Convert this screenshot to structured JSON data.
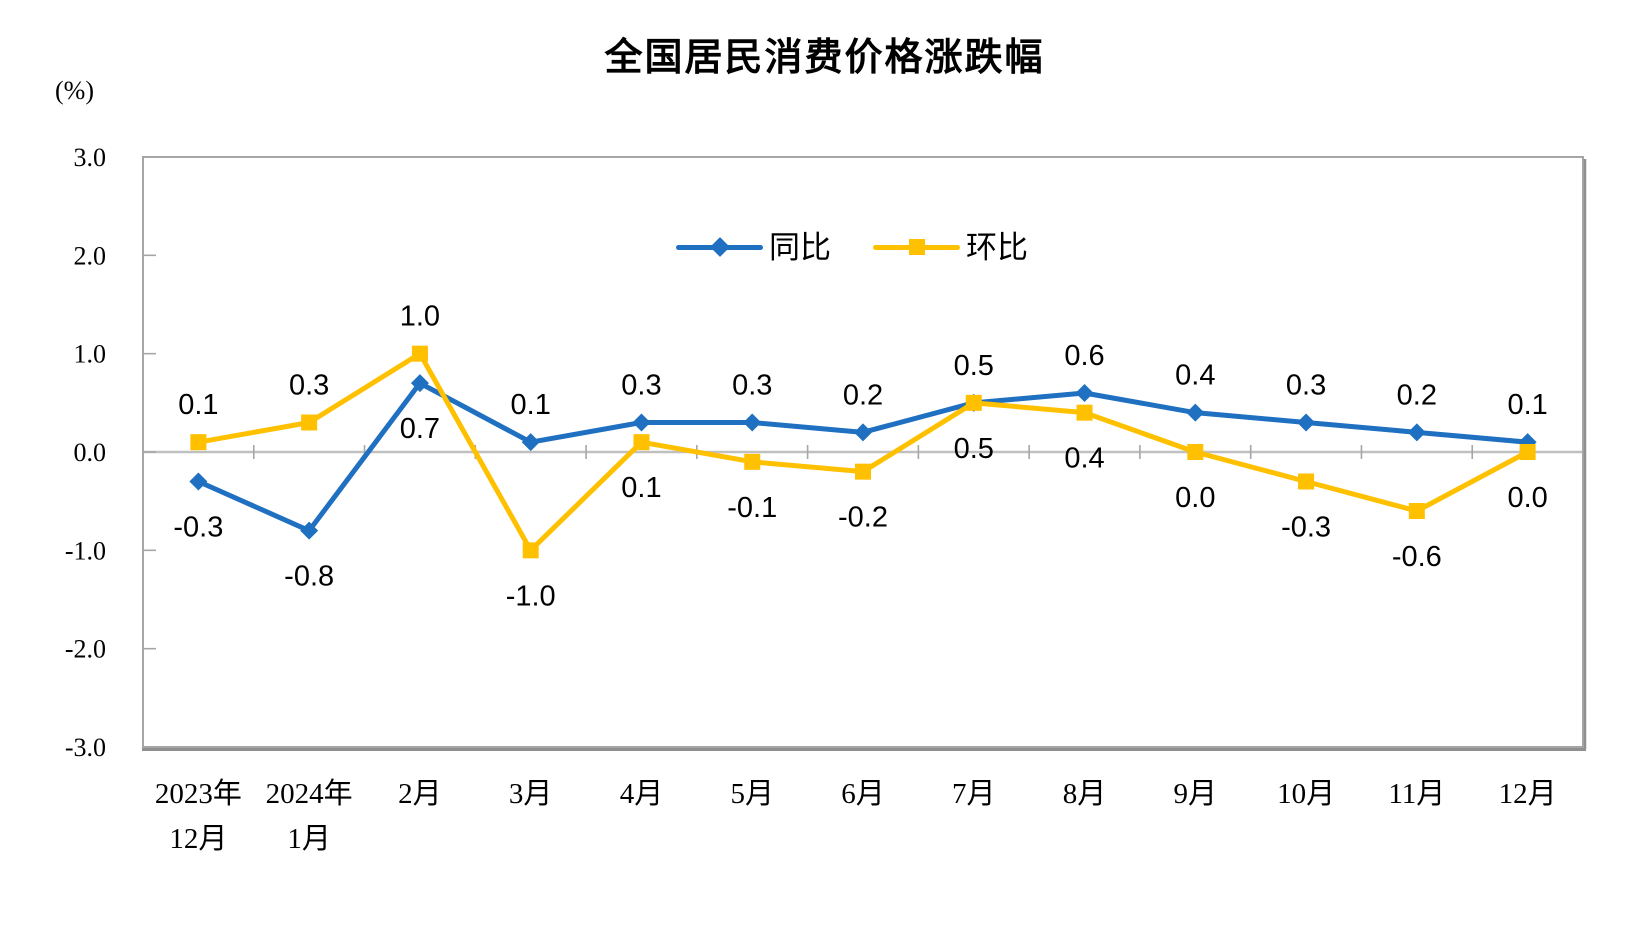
{
  "chart_data": {
    "type": "line",
    "title": "全国居民消费价格涨跌幅",
    "unit_label": "(%)",
    "categories": [
      [
        "2023年",
        "12月"
      ],
      [
        "2024年",
        "1月"
      ],
      [
        "2月"
      ],
      [
        "3月"
      ],
      [
        "4月"
      ],
      [
        "5月"
      ],
      [
        "6月"
      ],
      [
        "7月"
      ],
      [
        "8月"
      ],
      [
        "9月"
      ],
      [
        "10月"
      ],
      [
        "11月"
      ],
      [
        "12月"
      ]
    ],
    "series": [
      {
        "id": "yoy",
        "name": "同比",
        "color": "#1F70C1",
        "marker": "diamond",
        "values": [
          -0.3,
          -0.8,
          0.7,
          0.1,
          0.3,
          0.3,
          0.2,
          0.5,
          0.6,
          0.4,
          0.3,
          0.2,
          0.1
        ],
        "label_side": [
          "below",
          "below",
          "below",
          "above",
          "above",
          "above",
          "above",
          "above",
          "above",
          "above",
          "above",
          "above",
          "above"
        ]
      },
      {
        "id": "mom",
        "name": "环比",
        "color": "#FFC000",
        "marker": "square",
        "values": [
          0.1,
          0.3,
          1.0,
          -1.0,
          0.1,
          -0.1,
          -0.2,
          0.5,
          0.4,
          0.0,
          -0.3,
          -0.6,
          0.0
        ],
        "label_side": [
          "above",
          "above",
          "above",
          "below",
          "below",
          "below",
          "below",
          "below",
          "below",
          "below",
          "below",
          "below",
          "below"
        ]
      }
    ],
    "ylim": [
      -3.0,
      3.0
    ],
    "y_ticks": [
      "3.0",
      "2.0",
      "1.0",
      "0.0",
      "-1.0",
      "-2.0",
      "-3.0"
    ],
    "grid": "zero-baseline-only",
    "legend_position": "top-center-inside",
    "axis_color": "#A6A6A6",
    "zero_line_color": "#C0C0C0",
    "shadow_border_color": "#909090",
    "label_color": "#000000"
  }
}
